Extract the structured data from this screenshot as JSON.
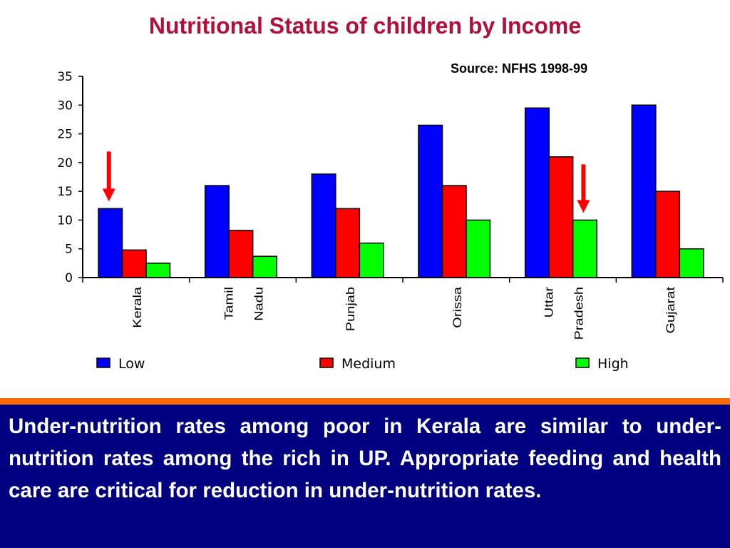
{
  "page": {
    "source": "Source: NFHS 1998-99",
    "footer_text": "Under-nutrition rates among poor in Kerala are similar to under-nutrition rates among the rich in UP. Appropriate feeding and health care are critical for reduction in under-nutrition rates."
  },
  "chart_data": {
    "type": "bar",
    "title": "Nutritional Status of children by Income",
    "xlabel": "",
    "ylabel": "",
    "ylim": [
      0,
      35
    ],
    "yticks": [
      0,
      5,
      10,
      15,
      20,
      25,
      30,
      35
    ],
    "grid": false,
    "legend_position": "bottom",
    "categories": [
      [
        "Kerala"
      ],
      [
        "Tamil",
        "Nadu"
      ],
      [
        "Punjab"
      ],
      [
        "Orissa"
      ],
      [
        "Uttar",
        "Pradesh"
      ],
      [
        "Gujarat"
      ]
    ],
    "series": [
      {
        "name": "Low",
        "color": "#0000ff",
        "values": [
          12,
          16,
          18,
          26.5,
          29.5,
          30
        ]
      },
      {
        "name": "Medium",
        "color": "#ff0000",
        "values": [
          4.8,
          8.2,
          12,
          16,
          21,
          15
        ]
      },
      {
        "name": "High",
        "color": "#00ff00",
        "values": [
          2.5,
          3.7,
          6,
          10,
          10,
          5
        ]
      }
    ],
    "annotations": [
      {
        "type": "arrow",
        "color": "#ff0000",
        "category": 0,
        "series": 0,
        "direction": "down"
      },
      {
        "type": "arrow",
        "color": "#ff0000",
        "category": 4,
        "series": 2,
        "direction": "down"
      }
    ]
  }
}
